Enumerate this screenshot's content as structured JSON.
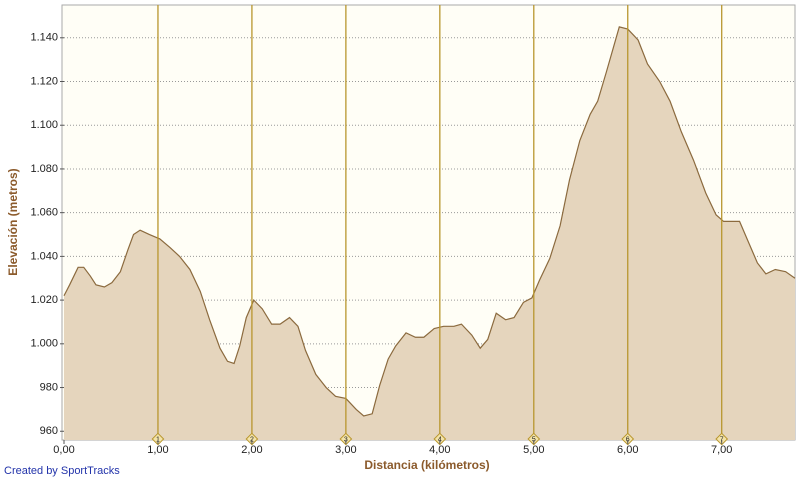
{
  "chart_data": {
    "type": "area",
    "x_label": "Distancia (kilómetros)",
    "y_label": "Elevación (metros)",
    "credit": "Created by SportTracks",
    "series": [
      {
        "name": null,
        "color": "#e5d5bd",
        "line_color": "#8b6a3e",
        "x": [
          0.0,
          0.06,
          0.15,
          0.21,
          0.28,
          0.34,
          0.43,
          0.51,
          0.6,
          0.68,
          0.74,
          0.81,
          0.91,
          1.02,
          1.13,
          1.23,
          1.34,
          1.45,
          1.55,
          1.66,
          1.74,
          1.81,
          1.87,
          1.94,
          2.02,
          2.11,
          2.21,
          2.3,
          2.4,
          2.49,
          2.57,
          2.68,
          2.79,
          2.89,
          3.0,
          3.11,
          3.19,
          3.28,
          3.36,
          3.45,
          3.53,
          3.64,
          3.74,
          3.83,
          3.94,
          4.04,
          4.15,
          4.23,
          4.34,
          4.43,
          4.51,
          4.6,
          4.7,
          4.79,
          4.89,
          4.98,
          5.06,
          5.17,
          5.28,
          5.38,
          5.49,
          5.6,
          5.68,
          5.77,
          5.85,
          5.91,
          6.0,
          6.11,
          6.21,
          6.34,
          6.45,
          6.57,
          6.7,
          6.83,
          6.94,
          7.02,
          7.11,
          7.19,
          7.28,
          7.38,
          7.47,
          7.57,
          7.68,
          7.78
        ],
        "values": [
          1022,
          1027,
          1035,
          1035,
          1031,
          1027,
          1026,
          1028,
          1033,
          1043,
          1050,
          1052,
          1050,
          1048,
          1044,
          1040,
          1034,
          1024,
          1011,
          998,
          992,
          991,
          999,
          1012,
          1020,
          1016,
          1009,
          1009,
          1012,
          1008,
          997,
          986,
          980,
          976,
          975,
          970,
          967,
          968,
          981,
          993,
          999,
          1005,
          1003,
          1003,
          1007,
          1008,
          1008,
          1009,
          1004,
          998,
          1002,
          1014,
          1011,
          1012,
          1019,
          1021,
          1029,
          1039,
          1054,
          1075,
          1093,
          1105,
          1111,
          1124,
          1136,
          1145,
          1144,
          1139,
          1128,
          1120,
          1111,
          1097,
          1084,
          1069,
          1059,
          1056,
          1056,
          1056,
          1047,
          1037,
          1032,
          1034,
          1033,
          1030
        ]
      }
    ],
    "xlim": [
      0,
      7.78
    ],
    "ylim": [
      956,
      1155
    ],
    "xticks": [
      {
        "value": 0,
        "label": "0,00"
      },
      {
        "value": 1,
        "label": "1,00"
      },
      {
        "value": 2,
        "label": "2,00"
      },
      {
        "value": 3,
        "label": "3,00"
      },
      {
        "value": 4,
        "label": "4,00"
      },
      {
        "value": 5,
        "label": "5,00"
      },
      {
        "value": 6,
        "label": "6,00"
      },
      {
        "value": 7,
        "label": "7,00"
      }
    ],
    "yticks": [
      960,
      980,
      {
        "value": 1000,
        "label": "1.000"
      },
      {
        "value": 1020,
        "label": "1.020"
      },
      {
        "value": 1040,
        "label": "1.040"
      },
      {
        "value": 1060,
        "label": "1.060"
      },
      {
        "value": 1080,
        "label": "1.080"
      },
      {
        "value": 1100,
        "label": "1.100"
      },
      {
        "value": 1120,
        "label": "1.120"
      },
      {
        "value": 1140,
        "label": "1.140"
      }
    ],
    "km_markers": [
      1,
      2,
      3,
      4,
      5,
      6,
      7
    ],
    "marker_color": "#b8962e",
    "grid": true
  }
}
